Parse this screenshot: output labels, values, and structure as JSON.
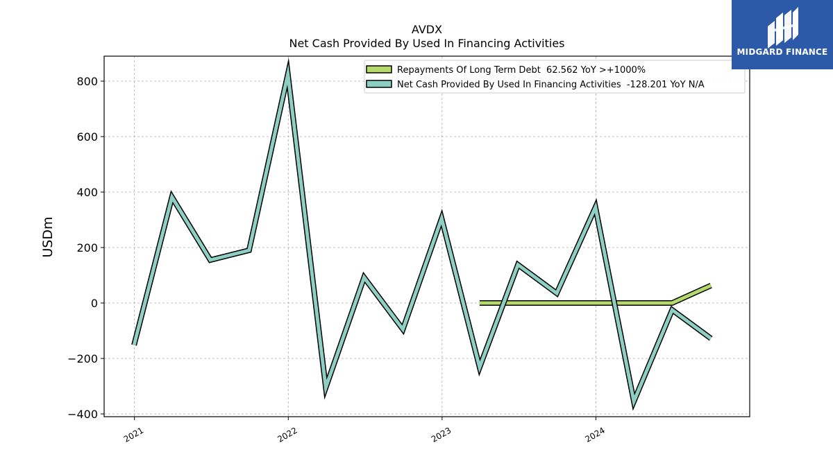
{
  "chart_data": {
    "type": "line",
    "title": "AVDX",
    "subtitle": "Net Cash Provided By Used In Financing Activities",
    "ylabel": "USDm",
    "xlabel": "",
    "ylim": [
      -410,
      890
    ],
    "xlim": [
      "2020-10-21",
      "2024-12-31"
    ],
    "yticks": [
      -400,
      -200,
      0,
      200,
      400,
      600,
      800
    ],
    "ytick_labels": [
      "−400",
      "−200",
      "0",
      "200",
      "400",
      "600",
      "800"
    ],
    "xticks": [
      "2021-01-01",
      "2022-01-01",
      "2023-01-01",
      "2024-01-01"
    ],
    "xtick_labels": [
      "2021",
      "2022",
      "2023",
      "2024"
    ],
    "grid": true,
    "legend_position": "top-right",
    "series": [
      {
        "name": "Repayments Of Long Term Debt  62.562 YoY >+1000%",
        "color": "#b5d96b",
        "x": [
          "2023-03-31",
          "2023-06-30",
          "2023-09-30",
          "2023-12-31",
          "2024-03-31",
          "2024-06-30",
          "2024-09-30"
        ],
        "values": [
          0,
          0,
          0,
          0,
          0,
          0,
          63
        ]
      },
      {
        "name": "Net Cash Provided By Used In Financing Activities  -128.201 YoY N/A",
        "color": "#8ecfc4",
        "x": [
          "2020-12-31",
          "2021-03-31",
          "2021-06-30",
          "2021-09-30",
          "2021-12-31",
          "2022-03-31",
          "2022-06-30",
          "2022-09-30",
          "2022-12-31",
          "2023-03-31",
          "2023-06-30",
          "2023-09-30",
          "2023-12-31",
          "2024-03-31",
          "2024-06-30",
          "2024-09-30"
        ],
        "values": [
          -152,
          382,
          155,
          190,
          825,
          -305,
          92,
          -95,
          305,
          -232,
          138,
          35,
          345,
          -355,
          -25,
          -128
        ]
      }
    ]
  },
  "branding": {
    "logo_text": "MIDGARD FINANCE",
    "logo_color": "#2d5aa8"
  }
}
